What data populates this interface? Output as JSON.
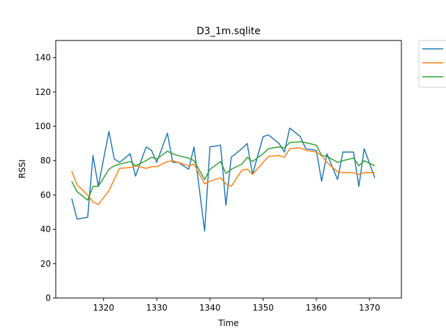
{
  "chart_data": {
    "type": "line",
    "title": "D3_1m.sqlite",
    "xlabel": "Time",
    "ylabel": "RSSI",
    "xlim": [
      1311,
      1376
    ],
    "ylim": [
      0,
      150
    ],
    "xticks": [
      1320,
      1330,
      1340,
      1350,
      1360,
      1370
    ],
    "yticks": [
      0,
      20,
      40,
      60,
      80,
      100,
      120,
      140
    ],
    "grid": false,
    "legend_position": "outside top-right",
    "series": [
      {
        "color": "#1f77b4",
        "x": [
          1314,
          1315,
          1317,
          1318,
          1319,
          1321,
          1322,
          1323,
          1325,
          1326,
          1328,
          1329,
          1330,
          1332,
          1333,
          1334,
          1336,
          1337,
          1339,
          1340,
          1342,
          1343,
          1344,
          1346,
          1347,
          1348,
          1350,
          1351,
          1353,
          1354,
          1355,
          1357,
          1358,
          1360,
          1361,
          1362,
          1364,
          1365,
          1367,
          1368,
          1369,
          1371
        ],
        "y": [
          58,
          46,
          47,
          83,
          65,
          97,
          81,
          79,
          84,
          71,
          88,
          86,
          79,
          96,
          79,
          79,
          75,
          88,
          39,
          88,
          89,
          54,
          82,
          87,
          90,
          72,
          94,
          95,
          90,
          85,
          99,
          94,
          87,
          86,
          68,
          84,
          69,
          85,
          85,
          65,
          87,
          70
        ]
      },
      {
        "color": "#ff7f0e",
        "x": [
          1314,
          1315,
          1317,
          1318,
          1319,
          1321,
          1322,
          1323,
          1325,
          1326,
          1328,
          1329,
          1330,
          1332,
          1333,
          1334,
          1336,
          1337,
          1339,
          1340,
          1342,
          1343,
          1344,
          1346,
          1347,
          1348,
          1350,
          1351,
          1353,
          1354,
          1355,
          1357,
          1358,
          1360,
          1361,
          1362,
          1364,
          1365,
          1367,
          1368,
          1369,
          1371
        ],
        "y": [
          74,
          66,
          60,
          56,
          54.5,
          62.5,
          69,
          75.5,
          76,
          77,
          75.5,
          76.5,
          76.5,
          79.5,
          80,
          79,
          77,
          78,
          66.5,
          68,
          70,
          66.5,
          65,
          74.5,
          75,
          72,
          79,
          82.5,
          83,
          82,
          87,
          87.5,
          86,
          85,
          83,
          79,
          73.5,
          73,
          73,
          72,
          73,
          73
        ]
      },
      {
        "color": "#2ca02c",
        "x": [
          1314,
          1315,
          1317,
          1318,
          1319,
          1321,
          1322,
          1323,
          1325,
          1326,
          1328,
          1329,
          1330,
          1332,
          1333,
          1334,
          1336,
          1337,
          1339,
          1340,
          1342,
          1343,
          1344,
          1346,
          1347,
          1348,
          1350,
          1351,
          1353,
          1354,
          1355,
          1357,
          1358,
          1360,
          1361,
          1362,
          1364,
          1365,
          1367,
          1368,
          1369,
          1371
        ],
        "y": [
          68,
          62,
          57,
          65,
          65,
          75,
          77,
          78,
          79.5,
          77,
          80,
          82,
          81,
          85.5,
          84,
          83,
          81.5,
          80,
          69,
          75,
          79.5,
          72.5,
          75,
          78,
          82,
          79.5,
          84,
          87,
          88,
          87.5,
          90.5,
          91,
          90.5,
          89,
          83,
          82.5,
          79,
          80,
          81.5,
          77,
          80,
          77
        ]
      }
    ]
  }
}
